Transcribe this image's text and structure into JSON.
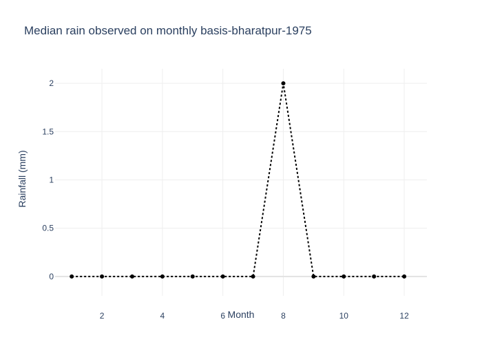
{
  "chart_data": {
    "type": "line",
    "title": "Median rain observed on monthly basis-bharatpur-1975",
    "xlabel": "Month",
    "ylabel": "Rainfall (mm)",
    "x": [
      1,
      2,
      3,
      4,
      5,
      6,
      7,
      8,
      9,
      10,
      11,
      12
    ],
    "series": [
      {
        "values": [
          0,
          0,
          0,
          0,
          0,
          0,
          0,
          2,
          0,
          0,
          0,
          0
        ]
      }
    ],
    "xlim": [
      0.45,
      12.75
    ],
    "ylim": [
      -0.2,
      2.15
    ],
    "xticks": [
      2,
      4,
      6,
      8,
      10,
      12
    ],
    "xtick_labels": [
      "2",
      "4",
      "6",
      "8",
      "10",
      "12"
    ],
    "yticks": [
      0,
      0.5,
      1,
      1.5,
      2
    ],
    "ytick_labels": [
      "0",
      "0.5",
      "1",
      "1.5",
      "2"
    ],
    "grid": true,
    "line_color": "#000000",
    "line_style": "dotted",
    "marker": "circle",
    "text_color": "#2a3f5f"
  }
}
